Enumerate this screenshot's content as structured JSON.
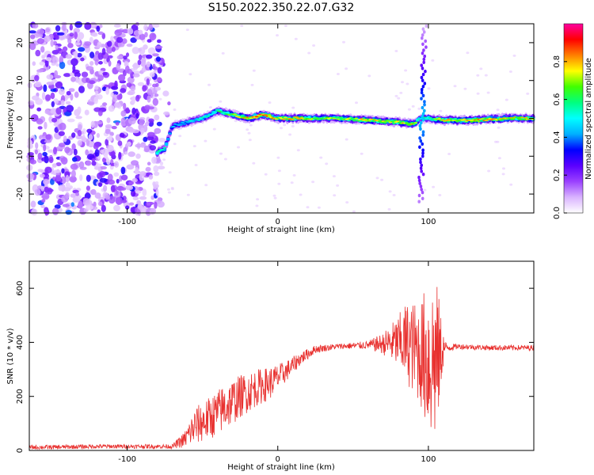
{
  "title": "S150.2022.350.22.07.G32",
  "chart_data": [
    {
      "type": "heatmap",
      "xlabel": "Height of straight line (km)",
      "ylabel": "Frequency (Hz)",
      "xlim": [
        -165,
        170
      ],
      "ylim": [
        -25,
        25
      ],
      "xticks": [
        -100,
        0,
        100
      ],
      "yticks": [
        -20,
        -10,
        0,
        10,
        20
      ],
      "colorbar": {
        "label": "Normalized spectral amplitude",
        "ticks": [
          0.0,
          0.2,
          0.4,
          0.6,
          0.8
        ],
        "range": [
          0,
          1
        ],
        "colors": [
          "#ffffff",
          "#d9b3ff",
          "#9a40ff",
          "#5a00ff",
          "#0000ff",
          "#00b0ff",
          "#00ffff",
          "#00ff80",
          "#40ff00",
          "#ffff00",
          "#ff8000",
          "#ff0000",
          "#ff00a0"
        ]
      },
      "ridge": {
        "description_points_x": [
          -80,
          -75,
          -70,
          -60,
          -50,
          -40,
          -30,
          -20,
          -10,
          0,
          10,
          20,
          40,
          60,
          80,
          90,
          95,
          100,
          110,
          130,
          150,
          170
        ],
        "frequency_hz": [
          -9,
          -8,
          -2,
          -1,
          0,
          2,
          1,
          0,
          1,
          0,
          0,
          0,
          0,
          -0.5,
          -1,
          -1.5,
          0,
          0,
          -0.5,
          -0.5,
          0,
          0
        ],
        "amplitude": [
          0.6,
          0.55,
          0.45,
          0.5,
          0.55,
          0.6,
          0.7,
          0.85,
          0.9,
          0.8,
          0.85,
          0.75,
          0.7,
          0.8,
          0.75,
          0.8,
          0.5,
          0.6,
          0.8,
          0.85,
          0.8,
          0.75
        ]
      },
      "noise_region_x": [
        -165,
        -78
      ]
    },
    {
      "type": "line",
      "xlabel": "Height of straight line (km)",
      "ylabel": "SNR (10 * v/v)",
      "xlim": [
        -165,
        170
      ],
      "ylim": [
        0,
        700
      ],
      "xticks": [
        -100,
        0,
        100
      ],
      "yticks": [
        0,
        200,
        400,
        600
      ],
      "color": "#e8312f",
      "envelope": {
        "x": [
          -165,
          -150,
          -120,
          -90,
          -70,
          -62,
          -55,
          -45,
          -35,
          -25,
          -15,
          -5,
          5,
          15,
          25,
          40,
          60,
          70,
          80,
          85,
          90,
          95,
          100,
          105,
          110,
          112,
          120,
          140,
          170
        ],
        "mean": [
          12,
          12,
          15,
          15,
          15,
          40,
          90,
          120,
          160,
          200,
          230,
          250,
          290,
          340,
          375,
          385,
          390,
          395,
          400,
          400,
          380,
          360,
          340,
          330,
          380,
          380,
          385,
          380,
          380
        ],
        "spread": [
          8,
          8,
          8,
          8,
          8,
          30,
          70,
          80,
          90,
          80,
          70,
          60,
          40,
          25,
          15,
          10,
          15,
          40,
          100,
          150,
          170,
          200,
          300,
          320,
          60,
          15,
          10,
          10,
          10
        ]
      }
    }
  ]
}
